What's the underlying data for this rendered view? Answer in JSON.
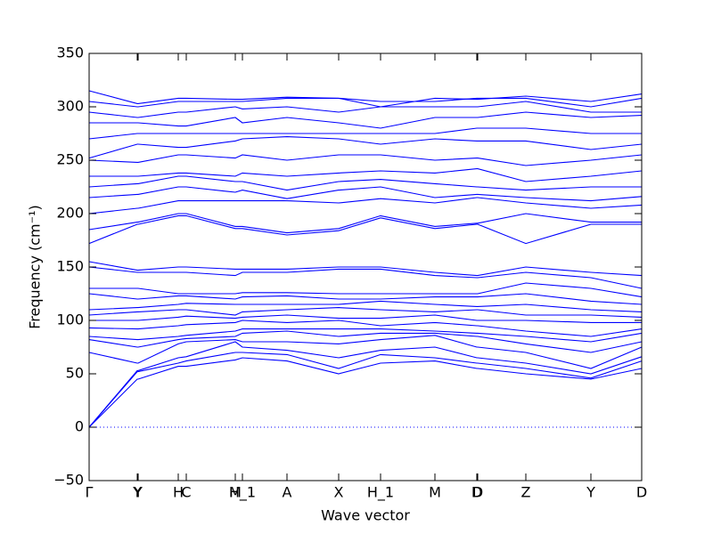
{
  "chart_data": {
    "type": "line",
    "xlabel": "Wave vector",
    "ylabel": "Frequency (cm⁻¹)",
    "color": "#0000ff",
    "reference_line": 0,
    "xlim": [
      0,
      6.2
    ],
    "ylim": [
      -50,
      350
    ],
    "xticks": [
      {
        "value": 0,
        "label": "Γ"
      },
      {
        "value": 0.54,
        "label": "Y"
      },
      {
        "value": 0.55,
        "label": "Y"
      },
      {
        "value": 1.0,
        "label": "H"
      },
      {
        "value": 1.09,
        "label": "C"
      },
      {
        "value": 1.64,
        "label": "M"
      },
      {
        "value": 1.72,
        "label": "H_1"
      },
      {
        "value": 2.22,
        "label": "A"
      },
      {
        "value": 2.8,
        "label": "X"
      },
      {
        "value": 3.27,
        "label": "H_1"
      },
      {
        "value": 3.88,
        "label": "M"
      },
      {
        "value": 4.35,
        "label": "D"
      },
      {
        "value": 4.36,
        "label": "D"
      },
      {
        "value": 4.9,
        "label": "Z"
      },
      {
        "value": 5.63,
        "label": "Y"
      },
      {
        "value": 6.2,
        "label": "D"
      }
    ],
    "yticks": [
      {
        "value": -50,
        "label": "−50"
      },
      0,
      50,
      100,
      150,
      200,
      250,
      300,
      350
    ],
    "x": [
      0,
      0.54,
      0.55,
      1.0,
      1.09,
      1.64,
      1.72,
      2.22,
      2.8,
      3.27,
      3.88,
      4.35,
      4.36,
      4.9,
      5.63,
      6.2
    ],
    "series": [
      {
        "values": [
          0,
          45,
          45,
          57,
          57,
          63,
          65,
          62,
          50,
          60,
          62,
          55,
          55,
          50,
          45,
          55
        ]
      },
      {
        "values": [
          0,
          52,
          52,
          60,
          62,
          70,
          70,
          68,
          55,
          68,
          65,
          60,
          60,
          55,
          46,
          62
        ]
      },
      {
        "values": [
          0,
          53,
          53,
          65,
          66,
          80,
          75,
          72,
          65,
          72,
          75,
          65,
          65,
          60,
          50,
          66
        ]
      },
      {
        "values": [
          70,
          60,
          60,
          78,
          80,
          82,
          80,
          80,
          78,
          82,
          86,
          75,
          75,
          70,
          55,
          75
        ]
      },
      {
        "values": [
          82,
          75,
          75,
          82,
          83,
          85,
          88,
          90,
          85,
          88,
          88,
          85,
          85,
          78,
          70,
          80
        ]
      },
      {
        "values": [
          85,
          82,
          82,
          85,
          86,
          90,
          92,
          92,
          92,
          92,
          90,
          88,
          88,
          85,
          80,
          88
        ]
      },
      {
        "values": [
          93,
          92,
          92,
          95,
          96,
          98,
          100,
          98,
          100,
          95,
          98,
          95,
          95,
          90,
          85,
          92
        ]
      },
      {
        "values": [
          100,
          100,
          100,
          103,
          104,
          102,
          103,
          105,
          102,
          102,
          105,
          100,
          100,
          100,
          98,
          98
        ]
      },
      {
        "values": [
          105,
          108,
          108,
          110,
          110,
          105,
          108,
          110,
          112,
          110,
          108,
          110,
          110,
          105,
          105,
          103
        ]
      },
      {
        "values": [
          110,
          112,
          112,
          115,
          116,
          115,
          115,
          115,
          115,
          118,
          115,
          113,
          113,
          115,
          110,
          108
        ]
      },
      {
        "values": [
          125,
          120,
          120,
          123,
          123,
          120,
          122,
          123,
          120,
          120,
          122,
          122,
          122,
          125,
          118,
          115
        ]
      },
      {
        "values": [
          130,
          130,
          130,
          125,
          125,
          125,
          126,
          126,
          125,
          125,
          125,
          125,
          125,
          135,
          130,
          122
        ]
      },
      {
        "values": [
          150,
          145,
          145,
          145,
          145,
          142,
          145,
          145,
          148,
          148,
          142,
          140,
          140,
          145,
          140,
          130
        ]
      },
      {
        "values": [
          155,
          147,
          147,
          150,
          150,
          148,
          148,
          148,
          150,
          150,
          145,
          142,
          142,
          150,
          145,
          142
        ]
      },
      {
        "values": [
          172,
          190,
          190,
          198,
          198,
          186,
          186,
          180,
          184,
          196,
          186,
          190,
          190,
          172,
          190,
          190
        ]
      },
      {
        "values": [
          185,
          192,
          192,
          200,
          200,
          188,
          188,
          182,
          186,
          198,
          188,
          191,
          191,
          200,
          192,
          192
        ]
      },
      {
        "values": [
          200,
          205,
          205,
          212,
          212,
          212,
          212,
          212,
          210,
          214,
          210,
          215,
          215,
          210,
          205,
          208
        ]
      },
      {
        "values": [
          215,
          218,
          218,
          225,
          225,
          220,
          222,
          214,
          222,
          225,
          215,
          218,
          218,
          215,
          212,
          216
        ]
      },
      {
        "values": [
          225,
          228,
          228,
          235,
          235,
          230,
          230,
          222,
          230,
          232,
          228,
          225,
          225,
          222,
          225,
          225
        ]
      },
      {
        "values": [
          235,
          235,
          235,
          238,
          238,
          235,
          238,
          235,
          238,
          240,
          238,
          242,
          242,
          230,
          235,
          240
        ]
      },
      {
        "values": [
          250,
          248,
          248,
          255,
          255,
          252,
          255,
          250,
          255,
          255,
          250,
          252,
          252,
          245,
          250,
          255
        ]
      },
      {
        "values": [
          252,
          265,
          265,
          262,
          262,
          268,
          270,
          272,
          270,
          265,
          270,
          268,
          268,
          268,
          260,
          265
        ]
      },
      {
        "values": [
          270,
          275,
          275,
          275,
          275,
          275,
          275,
          275,
          275,
          275,
          275,
          280,
          280,
          280,
          275,
          275
        ]
      },
      {
        "values": [
          285,
          285,
          285,
          282,
          282,
          290,
          285,
          290,
          285,
          280,
          290,
          290,
          290,
          295,
          290,
          292
        ]
      },
      {
        "values": [
          295,
          290,
          290,
          295,
          295,
          300,
          298,
          300,
          295,
          300,
          300,
          300,
          300,
          305,
          295,
          295
        ]
      },
      {
        "values": [
          305,
          300,
          300,
          305,
          305,
          305,
          305,
          308,
          308,
          305,
          305,
          308,
          308,
          308,
          300,
          308
        ]
      },
      {
        "values": [
          315,
          303,
          303,
          308,
          308,
          307,
          307,
          309,
          308,
          300,
          308,
          307,
          307,
          310,
          305,
          312
        ]
      }
    ]
  }
}
